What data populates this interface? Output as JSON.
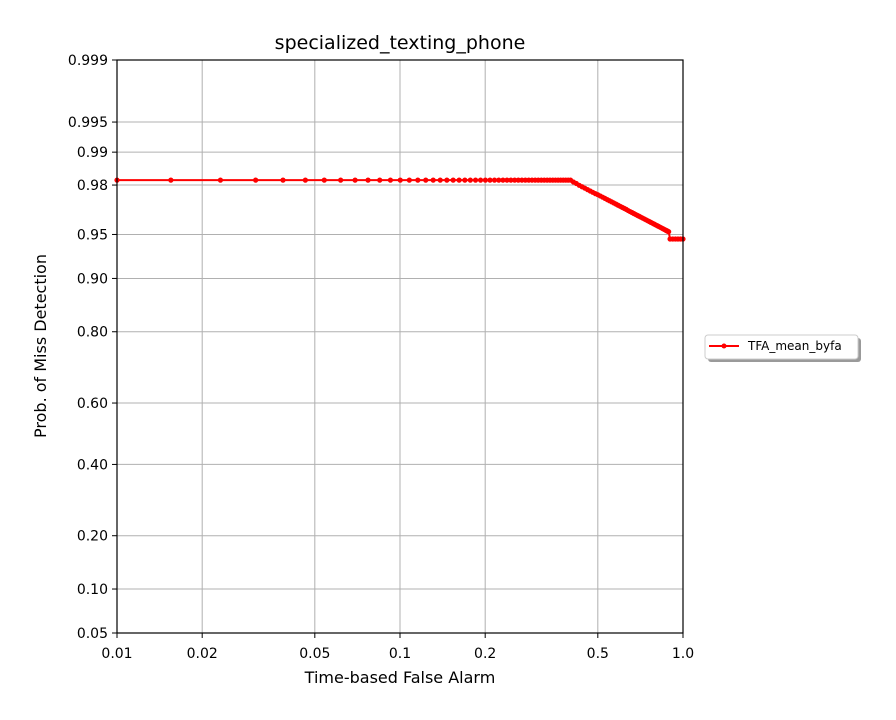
{
  "chart_data": {
    "type": "line",
    "title": "specialized_texting_phone",
    "xlabel": "Time-based False Alarm",
    "ylabel": "Prob. of Miss Detection",
    "x_scale": "log",
    "y_scale": "probit",
    "xlim": [
      0.01,
      1.0
    ],
    "ylim": [
      0.05,
      0.999
    ],
    "x_ticks": [
      0.01,
      0.02,
      0.05,
      0.1,
      0.2,
      0.5,
      1.0
    ],
    "x_tick_labels": [
      "0.01",
      "0.02",
      "0.05",
      "0.1",
      "0.2",
      "0.5",
      "1.0"
    ],
    "y_ticks": [
      0.05,
      0.1,
      0.2,
      0.4,
      0.6,
      0.8,
      0.9,
      0.95,
      0.98,
      0.99,
      0.995,
      0.999
    ],
    "y_tick_labels": [
      "0.05",
      "0.10",
      "0.20",
      "0.40",
      "0.60",
      "0.80",
      "0.90",
      "0.95",
      "0.98",
      "0.99",
      "0.995",
      "0.999"
    ],
    "grid": true,
    "legend_position": "right",
    "series": [
      {
        "name": "TFA_mean_byfa",
        "color": "#ff0000",
        "marker": "circle",
        "x": [
          0.01,
          0.0155,
          0.0232,
          0.0309,
          0.0386,
          0.0463,
          0.054,
          0.0617,
          0.0694,
          0.0771,
          0.0848,
          0.0925,
          0.1002,
          0.1079,
          0.1156,
          0.1233,
          0.131,
          0.1387,
          0.1464,
          0.1541,
          0.1618,
          0.1695,
          0.1772,
          0.1849,
          0.1926,
          0.2003,
          0.208,
          0.2157,
          0.2234,
          0.2311,
          0.2388,
          0.2465,
          0.2542,
          0.2619,
          0.2696,
          0.2773,
          0.285,
          0.2927,
          0.3004,
          0.3081,
          0.3158,
          0.3235,
          0.3312,
          0.3389,
          0.3466,
          0.3543,
          0.362,
          0.3697,
          0.3774,
          0.3851,
          0.3928,
          0.4005,
          0.41,
          0.42,
          0.43,
          0.44,
          0.45,
          0.46,
          0.47,
          0.48,
          0.49,
          0.5,
          0.51,
          0.52,
          0.53,
          0.54,
          0.55,
          0.56,
          0.57,
          0.58,
          0.59,
          0.6,
          0.61,
          0.62,
          0.63,
          0.64,
          0.65,
          0.66,
          0.67,
          0.68,
          0.69,
          0.7,
          0.71,
          0.72,
          0.73,
          0.74,
          0.75,
          0.76,
          0.77,
          0.78,
          0.79,
          0.8,
          0.81,
          0.82,
          0.83,
          0.84,
          0.85,
          0.86,
          0.87,
          0.875,
          0.88,
          0.885,
          0.89,
          0.9,
          0.92,
          0.94,
          0.96,
          0.98,
          1.0
        ],
        "y": [
          0.9819,
          0.9819,
          0.9819,
          0.9819,
          0.9819,
          0.9819,
          0.9819,
          0.9819,
          0.9819,
          0.9819,
          0.9819,
          0.9819,
          0.9819,
          0.9819,
          0.9819,
          0.9819,
          0.9819,
          0.9819,
          0.9819,
          0.9819,
          0.9819,
          0.9819,
          0.9819,
          0.9819,
          0.9819,
          0.9819,
          0.9819,
          0.9819,
          0.9819,
          0.9819,
          0.9819,
          0.9819,
          0.9819,
          0.9819,
          0.9819,
          0.9819,
          0.9819,
          0.9819,
          0.9819,
          0.9819,
          0.9819,
          0.9819,
          0.9819,
          0.9819,
          0.9819,
          0.9819,
          0.9819,
          0.9819,
          0.9819,
          0.9819,
          0.9819,
          0.9819,
          0.9812,
          0.9806,
          0.9799,
          0.9793,
          0.9787,
          0.9781,
          0.9775,
          0.9769,
          0.9763,
          0.9758,
          0.9752,
          0.9746,
          0.974,
          0.9734,
          0.9728,
          0.9722,
          0.9716,
          0.971,
          0.9704,
          0.9698,
          0.9692,
          0.9686,
          0.968,
          0.9673,
          0.9667,
          0.9661,
          0.9655,
          0.9649,
          0.9643,
          0.9637,
          0.9631,
          0.9625,
          0.9619,
          0.9613,
          0.9607,
          0.9601,
          0.9595,
          0.9589,
          0.9583,
          0.9577,
          0.9571,
          0.9565,
          0.9559,
          0.9553,
          0.9547,
          0.9541,
          0.9535,
          0.9532,
          0.9529,
          0.9526,
          0.9523,
          0.946,
          0.946,
          0.946,
          0.946,
          0.946,
          0.946
        ]
      }
    ]
  }
}
